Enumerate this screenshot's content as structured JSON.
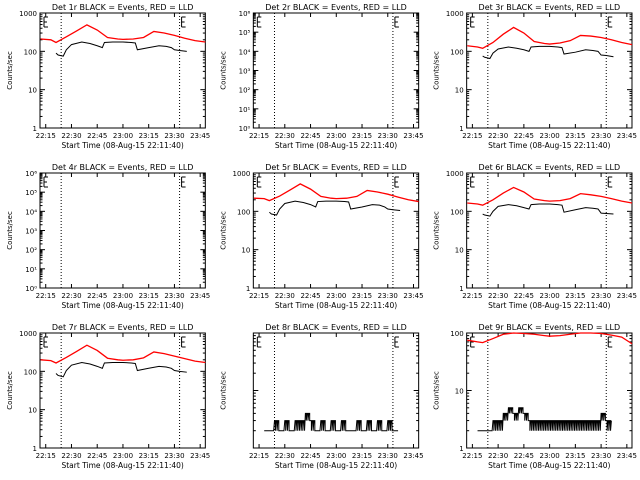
{
  "colors": {
    "events": "#000000",
    "lld": "#ff0000",
    "axis": "#000000",
    "background": "#ffffff"
  },
  "chart_data": [
    {
      "type": "line",
      "title": "Det 1r BLACK = Events, RED = LLD",
      "xlabel": "Start Time (08-Aug-15 22:11:40)",
      "ylabel": "Counts/sec",
      "xticks": [
        "22:15",
        "22:30",
        "22:45",
        "23:00",
        "23:15",
        "23:30",
        "23:45"
      ],
      "xlim": [
        22.1944,
        23.8
      ],
      "ylog": true,
      "ylim": [
        1,
        1000
      ],
      "yticklabels": [
        "1",
        "10",
        "100",
        "1000"
      ],
      "vlines": [
        22.4,
        23.55
      ],
      "series": [
        {
          "name": "LLD",
          "color": "#ff0000",
          "x": [
            22.2,
            22.3,
            22.35,
            22.45,
            22.55,
            22.65,
            22.75,
            22.85,
            22.95,
            23.0,
            23.1,
            23.2,
            23.3,
            23.4,
            23.5,
            23.6,
            23.7,
            23.8
          ],
          "values": [
            210,
            200,
            170,
            240,
            340,
            490,
            360,
            230,
            210,
            205,
            210,
            230,
            330,
            300,
            260,
            220,
            190,
            175
          ]
        },
        {
          "name": "Events",
          "color": "#000000",
          "x": [
            22.35,
            22.37,
            22.42,
            22.45,
            22.5,
            22.6,
            22.68,
            22.75,
            22.8,
            22.82,
            22.9,
            23.0,
            23.08,
            23.12,
            23.14,
            23.25,
            23.35,
            23.42,
            23.47,
            23.5,
            23.55,
            23.62
          ],
          "values": [
            90,
            80,
            75,
            110,
            150,
            175,
            160,
            140,
            125,
            170,
            175,
            175,
            170,
            165,
            110,
            125,
            140,
            135,
            125,
            110,
            105,
            100
          ]
        }
      ]
    },
    {
      "type": "line",
      "title": "Det 2r BLACK = Events, RED = LLD",
      "xlabel": "Start Time (08-Aug-15 22:11:40)",
      "ylabel": "Counts/sec",
      "xticks": [
        "22:15",
        "22:30",
        "22:45",
        "23:00",
        "23:15",
        "23:30",
        "23:45"
      ],
      "xlim": [
        22.1944,
        23.8
      ],
      "ylog": true,
      "ylim": [
        1,
        1000000
      ],
      "yticklabels": [
        "10⁰",
        "10¹",
        "10²",
        "10³",
        "10⁴",
        "10⁵",
        "10⁶"
      ],
      "vlines": [
        22.4,
        23.55
      ],
      "series": []
    },
    {
      "type": "line",
      "title": "Det 3r BLACK = Events, RED = LLD",
      "xlabel": "Start Time (08-Aug-15 22:11:40)",
      "ylabel": "Counts/sec",
      "xticks": [
        "22:15",
        "22:30",
        "22:45",
        "23:00",
        "23:15",
        "23:30",
        "23:45"
      ],
      "xlim": [
        22.1944,
        23.8
      ],
      "ylog": true,
      "ylim": [
        1,
        1000
      ],
      "yticklabels": [
        "1",
        "10",
        "100",
        "1000"
      ],
      "vlines": [
        22.4,
        23.55
      ],
      "series": [
        {
          "name": "LLD",
          "color": "#ff0000",
          "x": [
            22.2,
            22.3,
            22.35,
            22.45,
            22.55,
            22.65,
            22.75,
            22.85,
            22.95,
            23.0,
            23.1,
            23.2,
            23.3,
            23.4,
            23.5,
            23.6,
            23.7,
            23.8
          ],
          "values": [
            140,
            130,
            120,
            170,
            280,
            420,
            300,
            180,
            160,
            155,
            165,
            190,
            260,
            250,
            230,
            200,
            170,
            150
          ]
        },
        {
          "name": "Events",
          "color": "#000000",
          "x": [
            22.35,
            22.37,
            22.42,
            22.45,
            22.5,
            22.6,
            22.68,
            22.75,
            22.8,
            22.82,
            22.9,
            23.0,
            23.08,
            23.12,
            23.14,
            23.25,
            23.35,
            23.42,
            23.47,
            23.5,
            23.55,
            23.62
          ],
          "values": [
            75,
            70,
            65,
            90,
            115,
            130,
            120,
            110,
            100,
            130,
            135,
            135,
            130,
            125,
            85,
            95,
            110,
            105,
            100,
            80,
            78,
            72
          ]
        }
      ]
    },
    {
      "type": "line",
      "title": "Det 4r BLACK = Events, RED = LLD",
      "xlabel": "Start Time (08-Aug-15 22:11:40)",
      "ylabel": "Counts/sec",
      "xticks": [
        "22:15",
        "22:30",
        "22:45",
        "23:00",
        "23:15",
        "23:30",
        "23:45"
      ],
      "xlim": [
        22.1944,
        23.8
      ],
      "ylog": true,
      "ylim": [
        1,
        1000000
      ],
      "yticklabels": [
        "10⁰",
        "10¹",
        "10²",
        "10³",
        "10⁴",
        "10⁵",
        "10⁶"
      ],
      "vlines": [
        22.4,
        23.55
      ],
      "series": []
    },
    {
      "type": "line",
      "title": "Det 5r BLACK = Events, RED = LLD",
      "xlabel": "Start Time (08-Aug-15 22:11:40)",
      "ylabel": "Counts/sec",
      "xticks": [
        "22:15",
        "22:30",
        "22:45",
        "23:00",
        "23:15",
        "23:30",
        "23:45"
      ],
      "xlim": [
        22.1944,
        23.8
      ],
      "ylog": true,
      "ylim": [
        1,
        1000
      ],
      "yticklabels": [
        "1",
        "10",
        "100",
        "1000"
      ],
      "vlines": [
        22.4,
        23.55
      ],
      "series": [
        {
          "name": "LLD",
          "color": "#ff0000",
          "x": [
            22.2,
            22.3,
            22.35,
            22.45,
            22.55,
            22.65,
            22.75,
            22.85,
            22.95,
            23.0,
            23.1,
            23.2,
            23.3,
            23.4,
            23.5,
            23.6,
            23.7,
            23.8
          ],
          "values": [
            220,
            215,
            190,
            250,
            360,
            520,
            380,
            245,
            220,
            215,
            220,
            245,
            350,
            320,
            280,
            235,
            200,
            180
          ]
        },
        {
          "name": "Events",
          "color": "#000000",
          "x": [
            22.35,
            22.37,
            22.42,
            22.45,
            22.5,
            22.6,
            22.68,
            22.75,
            22.8,
            22.82,
            22.9,
            23.0,
            23.08,
            23.12,
            23.14,
            23.25,
            23.35,
            23.42,
            23.47,
            23.5,
            23.55,
            23.62
          ],
          "values": [
            95,
            85,
            80,
            115,
            160,
            185,
            170,
            150,
            130,
            180,
            185,
            185,
            180,
            175,
            115,
            130,
            150,
            145,
            130,
            115,
            110,
            105
          ]
        }
      ]
    },
    {
      "type": "line",
      "title": "Det 6r BLACK = Events, RED = LLD",
      "xlabel": "Start Time (08-Aug-15 22:11:40)",
      "ylabel": "Counts/sec",
      "xticks": [
        "22:15",
        "22:30",
        "22:45",
        "23:00",
        "23:15",
        "23:30",
        "23:45"
      ],
      "xlim": [
        22.1944,
        23.8
      ],
      "ylog": true,
      "ylim": [
        1,
        1000
      ],
      "yticklabels": [
        "1",
        "10",
        "100",
        "1000"
      ],
      "vlines": [
        22.4,
        23.55
      ],
      "series": [
        {
          "name": "LLD",
          "color": "#ff0000",
          "x": [
            22.2,
            22.3,
            22.35,
            22.45,
            22.55,
            22.65,
            22.75,
            22.85,
            22.95,
            23.0,
            23.1,
            23.2,
            23.3,
            23.4,
            23.5,
            23.6,
            23.7,
            23.8
          ],
          "values": [
            165,
            155,
            145,
            200,
            300,
            420,
            320,
            210,
            190,
            185,
            190,
            215,
            290,
            270,
            245,
            215,
            185,
            165
          ]
        },
        {
          "name": "Events",
          "color": "#000000",
          "x": [
            22.35,
            22.37,
            22.42,
            22.45,
            22.5,
            22.6,
            22.68,
            22.75,
            22.8,
            22.82,
            22.9,
            23.0,
            23.08,
            23.12,
            23.14,
            23.25,
            23.35,
            23.42,
            23.47,
            23.5,
            23.55,
            23.62
          ],
          "values": [
            85,
            80,
            75,
            100,
            135,
            150,
            140,
            125,
            115,
            150,
            155,
            155,
            150,
            145,
            95,
            110,
            125,
            120,
            115,
            90,
            88,
            85
          ]
        }
      ]
    },
    {
      "type": "line",
      "title": "Det 7r BLACK = Events, RED = LLD",
      "xlabel": "Start Time (08-Aug-15 22:11:40)",
      "ylabel": "Counts/sec",
      "xticks": [
        "22:15",
        "22:30",
        "22:45",
        "23:00",
        "23:15",
        "23:30",
        "23:45"
      ],
      "xlim": [
        22.1944,
        23.8
      ],
      "ylog": true,
      "ylim": [
        1,
        1000
      ],
      "yticklabels": [
        "1",
        "10",
        "100",
        "1000"
      ],
      "vlines": [
        22.4,
        23.55
      ],
      "series": [
        {
          "name": "LLD",
          "color": "#ff0000",
          "x": [
            22.2,
            22.3,
            22.35,
            22.45,
            22.55,
            22.65,
            22.75,
            22.85,
            22.95,
            23.0,
            23.1,
            23.2,
            23.3,
            23.4,
            23.5,
            23.6,
            23.7,
            23.8
          ],
          "values": [
            200,
            190,
            165,
            230,
            330,
            480,
            350,
            220,
            200,
            195,
            200,
            225,
            320,
            290,
            250,
            215,
            185,
            170
          ]
        },
        {
          "name": "Events",
          "color": "#000000",
          "x": [
            22.35,
            22.37,
            22.42,
            22.45,
            22.5,
            22.6,
            22.68,
            22.75,
            22.8,
            22.82,
            22.9,
            23.0,
            23.08,
            23.12,
            23.14,
            23.25,
            23.35,
            23.42,
            23.47,
            23.5,
            23.55,
            23.62
          ],
          "values": [
            88,
            78,
            72,
            105,
            145,
            170,
            155,
            135,
            120,
            165,
            170,
            170,
            165,
            160,
            105,
            120,
            135,
            130,
            120,
            105,
            100,
            95
          ]
        }
      ]
    },
    {
      "type": "line",
      "title": "Det 8r BLACK = Events, RED = LLD",
      "xlabel": "Start Time (08-Aug-15 22:11:40)",
      "ylabel": "Counts/sec",
      "xticks": [
        "22:15",
        "22:30",
        "22:45",
        "23:00",
        "23:15",
        "23:30",
        "23:45"
      ],
      "xlim": [
        22.1944,
        23.8
      ],
      "ylog": true,
      "ylim": [
        1,
        100
      ],
      "yticklabels": [],
      "vlines": [
        22.4,
        23.55
      ],
      "series": [
        {
          "name": "Events",
          "color": "#000000",
          "x": [
            22.3,
            22.35,
            22.4,
            22.45,
            22.5,
            22.55,
            22.6,
            22.65,
            22.7,
            22.75,
            22.8,
            22.85,
            22.9,
            22.95,
            23.0,
            23.05,
            23.1,
            23.15,
            23.2,
            23.25,
            23.3,
            23.35,
            23.4,
            23.45,
            23.5,
            23.55,
            23.6
          ],
          "values": [
            2,
            2,
            3,
            2,
            3,
            2,
            3,
            3,
            4,
            3,
            2,
            3,
            2,
            3,
            2,
            3,
            2,
            2,
            3,
            2,
            3,
            2,
            3,
            2,
            3,
            2,
            2
          ]
        }
      ]
    },
    {
      "type": "line",
      "title": "Det 9r BLACK = Events, RED = LLD",
      "xlabel": "Start Time (08-Aug-15 22:11:40)",
      "ylabel": "Counts/sec",
      "xticks": [
        "22:15",
        "22:30",
        "22:45",
        "23:00",
        "23:15",
        "23:30",
        "23:45"
      ],
      "xlim": [
        22.1944,
        23.8
      ],
      "ylog": true,
      "ylim": [
        1,
        100
      ],
      "yticklabels": [
        "1",
        "10",
        "100"
      ],
      "vlines": [
        22.4,
        23.55
      ],
      "series": [
        {
          "name": "LLD",
          "color": "#ff0000",
          "x": [
            22.2,
            22.3,
            22.35,
            22.45,
            22.55,
            22.65,
            22.75,
            22.85,
            22.95,
            23.0,
            23.1,
            23.2,
            23.3,
            23.4,
            23.5,
            23.6,
            23.7,
            23.8
          ],
          "values": [
            75,
            70,
            68,
            80,
            95,
            100,
            98,
            95,
            90,
            88,
            90,
            95,
            100,
            100,
            98,
            92,
            85,
            65
          ]
        },
        {
          "name": "Events",
          "color": "#000000",
          "x": [
            22.3,
            22.35,
            22.4,
            22.45,
            22.5,
            22.55,
            22.6,
            22.65,
            22.7,
            22.75,
            22.8,
            22.85,
            22.9,
            22.95,
            23.0,
            23.05,
            23.1,
            23.15,
            23.2,
            23.25,
            23.3,
            23.35,
            23.4,
            23.45,
            23.5,
            23.55,
            23.6
          ],
          "values": [
            2,
            2,
            2,
            3,
            3,
            4,
            5,
            4,
            5,
            4,
            3,
            3,
            3,
            3,
            3,
            3,
            3,
            3,
            3,
            3,
            3,
            3,
            3,
            3,
            4,
            3,
            3
          ]
        }
      ]
    }
  ]
}
